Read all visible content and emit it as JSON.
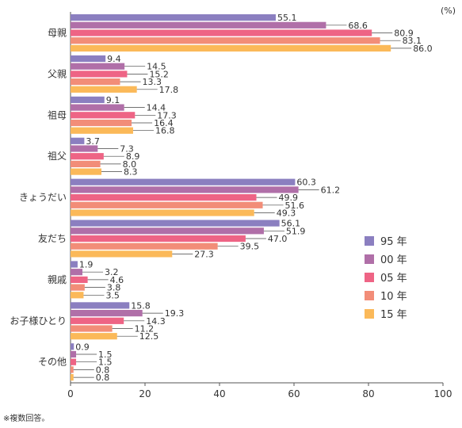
{
  "chart_data": {
    "type": "bar",
    "orientation": "horizontal",
    "unit_label": "(%)",
    "note": "※複数回答。",
    "categories": [
      "母親",
      "父親",
      "祖母",
      "祖父",
      "きょうだい",
      "友だち",
      "親戚",
      "お子様ひとり",
      "その他"
    ],
    "series": [
      {
        "name": "95 年",
        "color": "#8b7fc0",
        "values": [
          55.1,
          9.4,
          9.1,
          3.7,
          60.3,
          56.1,
          1.9,
          15.8,
          0.9
        ]
      },
      {
        "name": "00 年",
        "color": "#b06fa8",
        "values": [
          68.6,
          14.5,
          14.4,
          7.3,
          61.2,
          51.9,
          3.2,
          19.3,
          1.5
        ]
      },
      {
        "name": "05 年",
        "color": "#ee6485",
        "values": [
          80.9,
          15.2,
          17.3,
          8.9,
          49.9,
          47.0,
          4.6,
          14.3,
          1.5
        ]
      },
      {
        "name": "10 年",
        "color": "#f28d78",
        "values": [
          83.1,
          13.3,
          16.4,
          8.0,
          51.6,
          39.5,
          3.8,
          11.2,
          0.8
        ]
      },
      {
        "name": "15 年",
        "color": "#fbb959",
        "values": [
          86.0,
          17.8,
          16.8,
          8.3,
          49.3,
          27.3,
          3.5,
          12.5,
          0.8
        ]
      }
    ],
    "labels": [
      [
        "55.1",
        "68.6",
        "80.9",
        "83.1",
        "86.0"
      ],
      [
        "9.4",
        "14.5",
        "15.2",
        "13.3",
        "17.8"
      ],
      [
        "9.1",
        "14.4",
        "17.3",
        "16.4",
        "16.8"
      ],
      [
        "3.7",
        "7.3",
        "8.9",
        "8.0",
        "8.3"
      ],
      [
        "60.3",
        "61.2",
        "49.9",
        "51.6",
        "49.3"
      ],
      [
        "56.1",
        "51.9",
        "47.0",
        "39.5",
        "27.3"
      ],
      [
        "1.9",
        "3.2",
        "4.6",
        "3.8",
        "3.5"
      ],
      [
        "15.8",
        "19.3",
        "14.3",
        "11.2",
        "12.5"
      ],
      [
        "0.9",
        "1.5",
        "1.5",
        "0.8",
        "0.8"
      ]
    ],
    "xlim": [
      0,
      100
    ],
    "xticks": [
      "0",
      "20",
      "40",
      "60",
      "80",
      "100"
    ],
    "grid": false,
    "legend_position": "right"
  }
}
